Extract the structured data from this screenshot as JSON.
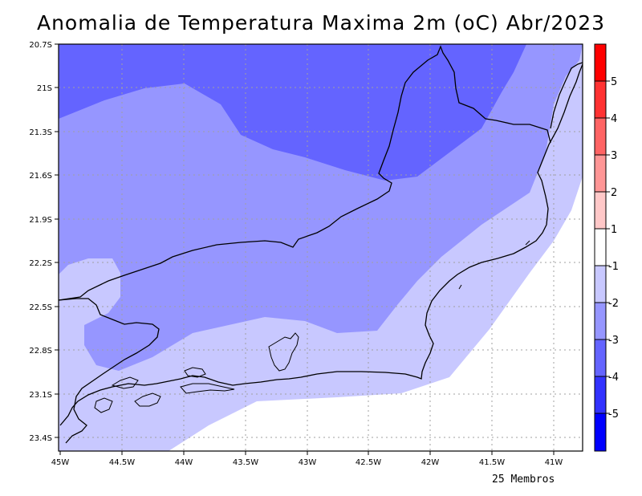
{
  "title": "Anomalia de Temperatura Maxima 2m (oC) Abr/2023",
  "footer": "25 Membros",
  "lat_labels": [
    "20.7S",
    "21S",
    "21.3S",
    "21.6S",
    "21.9S",
    "22.2S",
    "22.5S",
    "22.8S",
    "23.1S",
    "23.4S"
  ],
  "lon_labels": [
    "45W",
    "44.5W",
    "44W",
    "43.5W",
    "43W",
    "42.5W",
    "42W",
    "41.5W",
    "41W"
  ],
  "colorbar": {
    "labels": [
      "5",
      "4",
      "3",
      "2",
      "1",
      "-1",
      "-2",
      "-3",
      "-4",
      "-5"
    ],
    "colors": [
      "#0000ff",
      "#3232ff",
      "#6464ff",
      "#9696ff",
      "#c8c8ff",
      "#ffffff",
      "#ffc8c8",
      "#ff9696",
      "#ff6464",
      "#ff3232",
      "#ff0000"
    ]
  },
  "map": {
    "lon_range": [
      -45,
      -40.75
    ],
    "lat_range": [
      -23.5,
      -20.7
    ],
    "fill_colors": {
      "minus4": "#6464ff",
      "minus3": "#9696ff",
      "minus2": "#c8c8ff",
      "minus1": "#ffffff"
    }
  }
}
